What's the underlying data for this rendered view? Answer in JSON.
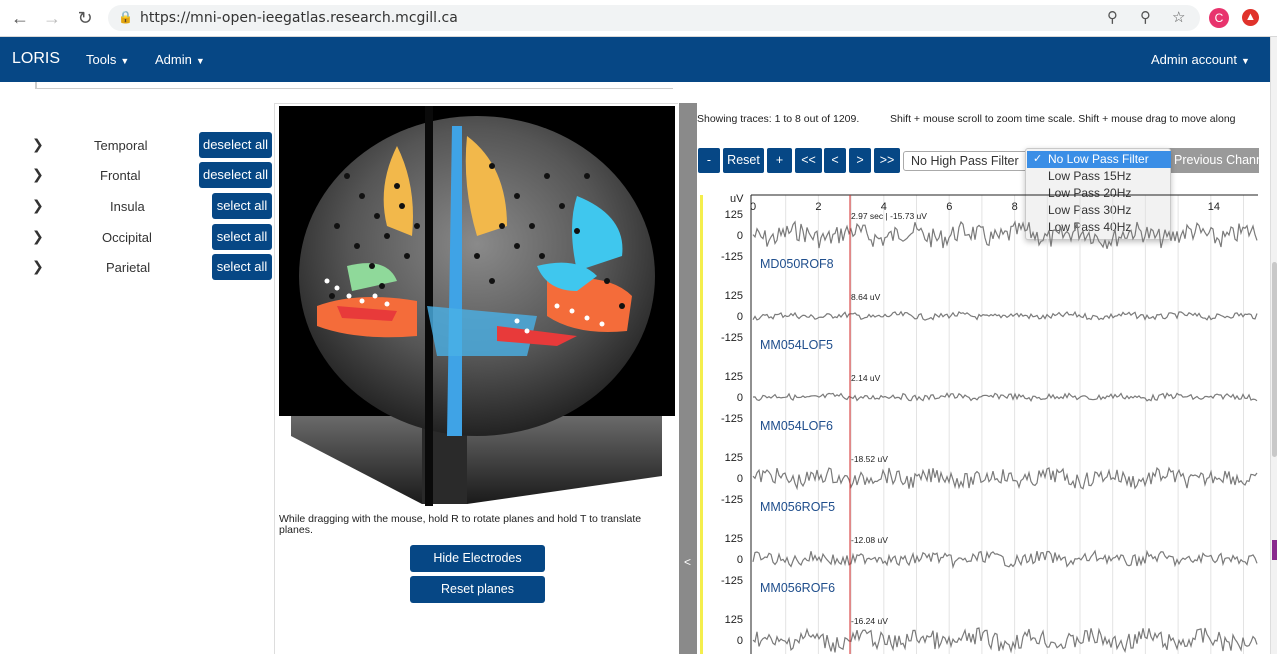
{
  "browser": {
    "url": "https://mni-open-ieegatlas.research.mcgill.ca",
    "avatar_letter": "C"
  },
  "navbar": {
    "brand": "LORIS",
    "tools": "Tools",
    "admin": "Admin",
    "account": "Admin account"
  },
  "regions": [
    {
      "label": "Temporal",
      "button": "deselect all"
    },
    {
      "label": "Frontal",
      "button": "deselect all"
    },
    {
      "label": "Insula",
      "button": "select all"
    },
    {
      "label": "Occipital",
      "button": "select all"
    },
    {
      "label": "Parietal",
      "button": "select all"
    }
  ],
  "viewer": {
    "hint": "While dragging with the mouse, hold R to rotate planes and hold T to translate planes.",
    "hide_electrodes": "Hide Electrodes",
    "reset_planes": "Reset planes",
    "collapse": "<"
  },
  "signal": {
    "showing": "Showing traces: 1 to 8 out of 1209.",
    "hint": "Shift + mouse scroll to zoom time scale. Shift + mouse drag to move along",
    "controls": {
      "minus": "-",
      "reset": "Reset",
      "plus": "+",
      "first": "<<",
      "prev": "<",
      "next": ">",
      "last": ">>"
    },
    "high_pass": "No High Pass Filter",
    "low_pass_options": [
      "No Low Pass Filter",
      "Low Pass 15Hz",
      "Low Pass 20Hz",
      "Low Pass 30Hz",
      "Low Pass 40Hz"
    ],
    "low_pass_selected": "No Low Pass Filter",
    "prev_channels": "Previous Channels",
    "unit": "uV",
    "x_ticks": [
      "0",
      "2",
      "4",
      "6",
      "8",
      "14"
    ],
    "y_ticks": [
      "125",
      "0",
      "-125"
    ],
    "cursor_time": "2.97 sec | -15.73 uV",
    "channels": [
      {
        "name": "MD050ROF8",
        "cursor": "2.97 sec | -15.73 uV"
      },
      {
        "name": "MM054LOF5",
        "cursor": "8.64 uV"
      },
      {
        "name": "MM054LOF6",
        "cursor": "2.14 uV"
      },
      {
        "name": "MM056ROF5",
        "cursor": "-18.52 uV"
      },
      {
        "name": "MM056ROF6",
        "cursor": "-12.08 uV"
      },
      {
        "name": "",
        "cursor": "-16.24 uV"
      }
    ]
  },
  "colors": {
    "primary": "#064785",
    "cursor_line": "#d62828",
    "trace": "#7a7a7a",
    "highlight": "#f4ee4d"
  }
}
